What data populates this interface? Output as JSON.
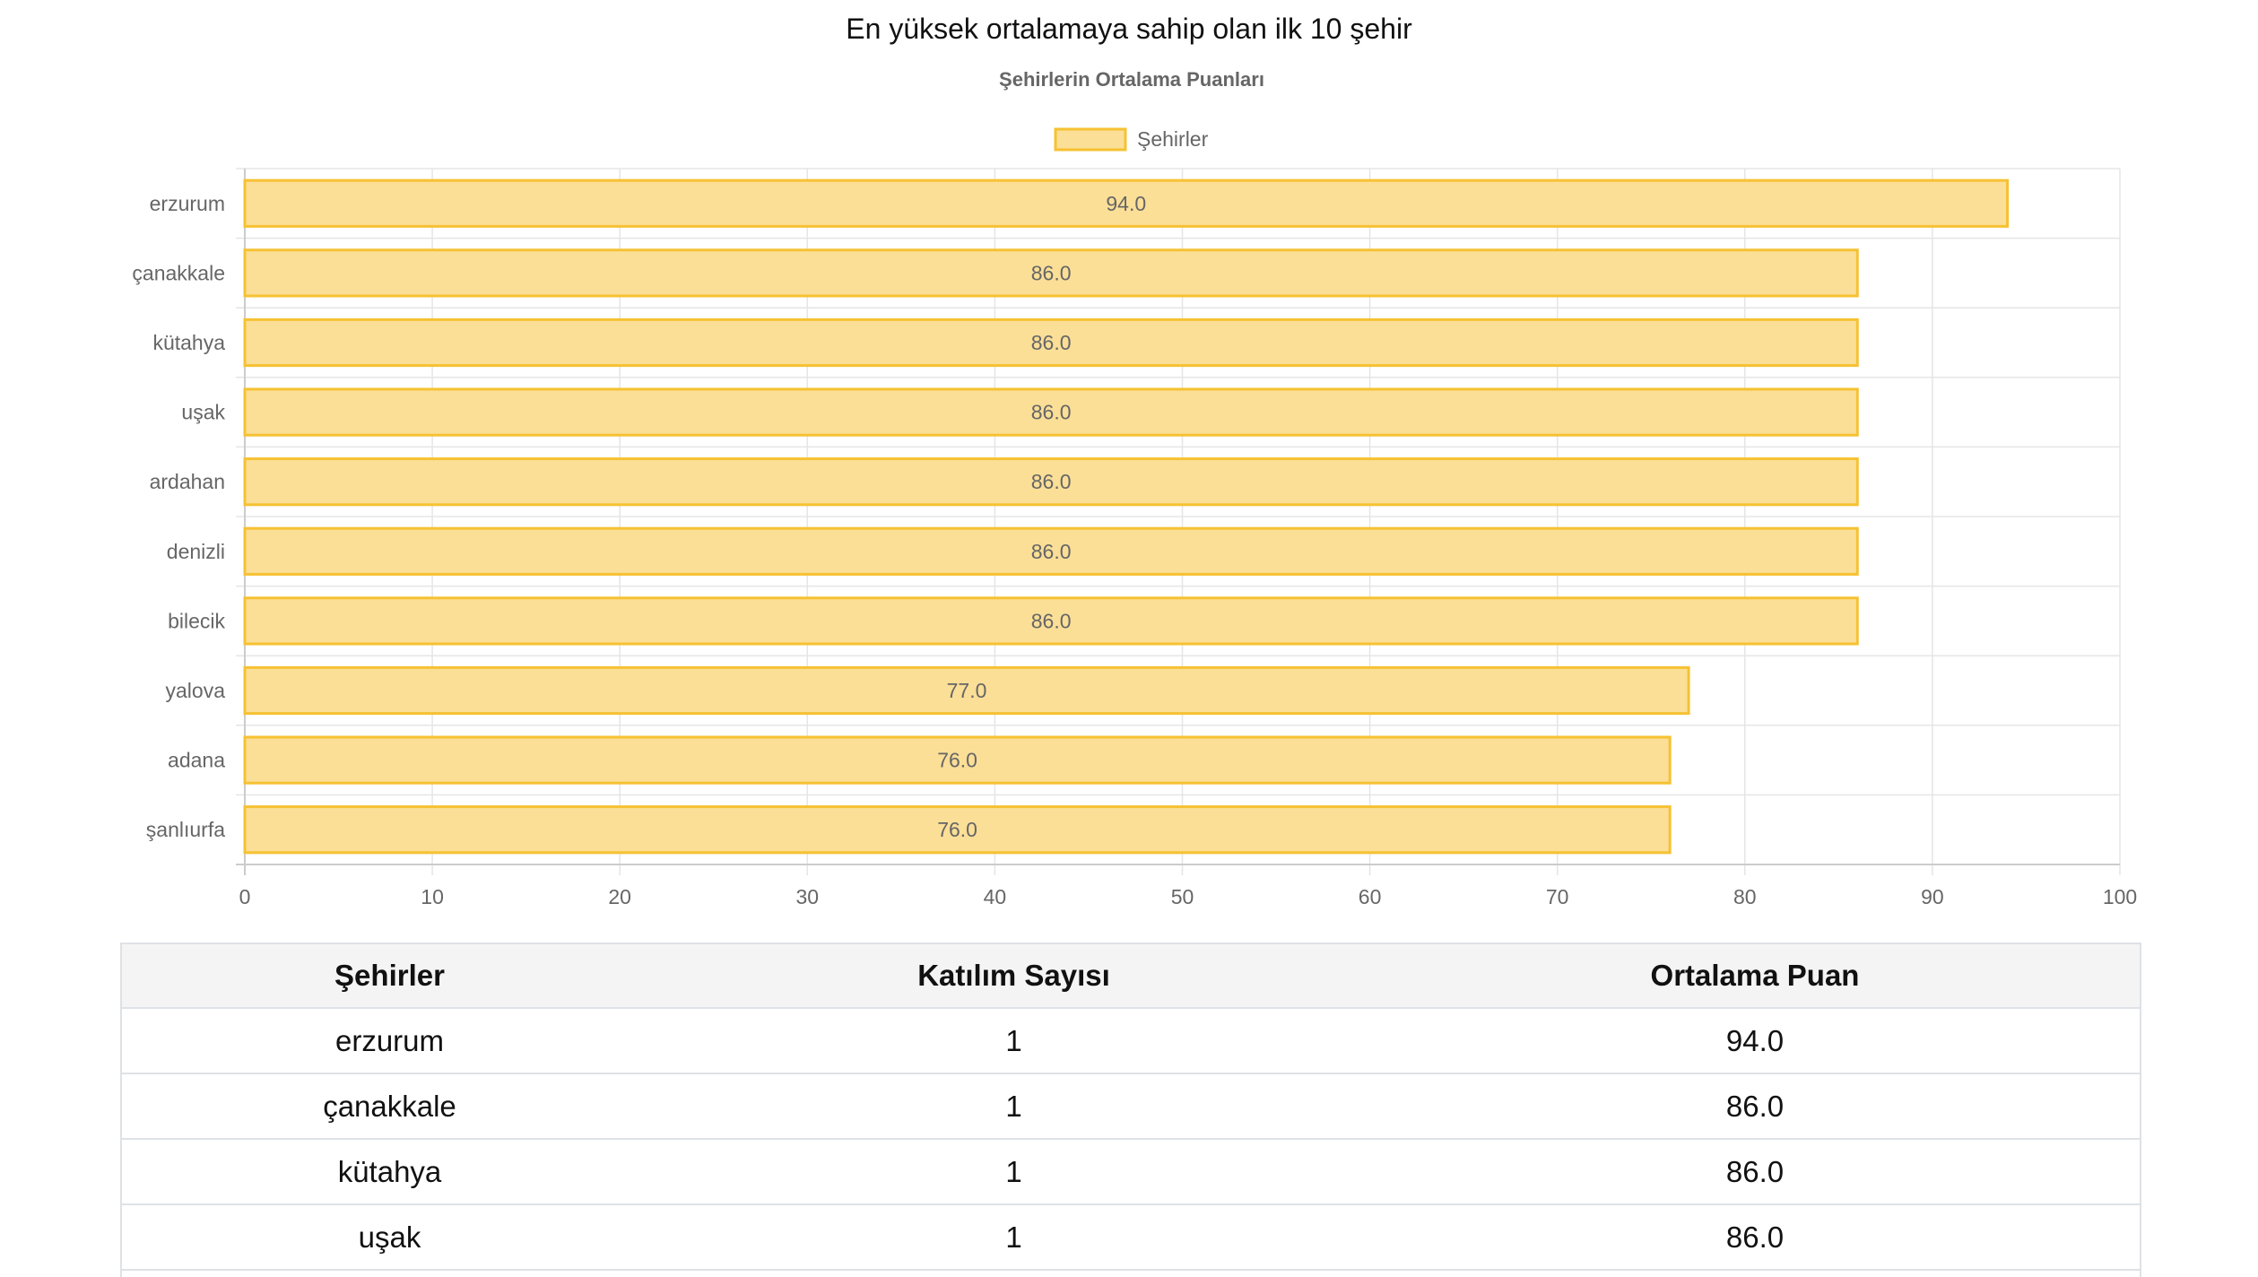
{
  "page": {
    "title": "En yüksek ortalamaya sahip olan ilk 10 şehir"
  },
  "chart_data": {
    "type": "bar",
    "orientation": "horizontal",
    "title": "Şehirlerin Ortalama Puanları",
    "legend": {
      "label": "Şehirler",
      "placement": "top"
    },
    "categories": [
      "erzurum",
      "çanakkale",
      "kütahya",
      "uşak",
      "ardahan",
      "denizli",
      "bilecik",
      "yalova",
      "adana",
      "şanlıurfa"
    ],
    "series": [
      {
        "name": "Şehirler",
        "values": [
          94.0,
          86.0,
          86.0,
          86.0,
          86.0,
          86.0,
          86.0,
          77.0,
          76.0,
          76.0
        ],
        "value_labels": [
          "94.0",
          "86.0",
          "86.0",
          "86.0",
          "86.0",
          "86.0",
          "86.0",
          "77.0",
          "76.0",
          "76.0"
        ]
      }
    ],
    "xlim": [
      0,
      100
    ],
    "x_ticks": [
      "0",
      "10",
      "20",
      "30",
      "40",
      "50",
      "60",
      "70",
      "80",
      "90",
      "100"
    ],
    "grid": true,
    "colors": {
      "bar_fill": "#fbdf97",
      "bar_border": "#f6c132",
      "grid": "#e5e5e5",
      "text": "#666666"
    }
  },
  "table": {
    "headers": [
      "Şehirler",
      "Katılım Sayısı",
      "Ortalama Puan"
    ],
    "rows": [
      [
        "erzurum",
        "1",
        "94.0"
      ],
      [
        "çanakkale",
        "1",
        "86.0"
      ],
      [
        "kütahya",
        "1",
        "86.0"
      ],
      [
        "uşak",
        "1",
        "86.0"
      ]
    ]
  }
}
